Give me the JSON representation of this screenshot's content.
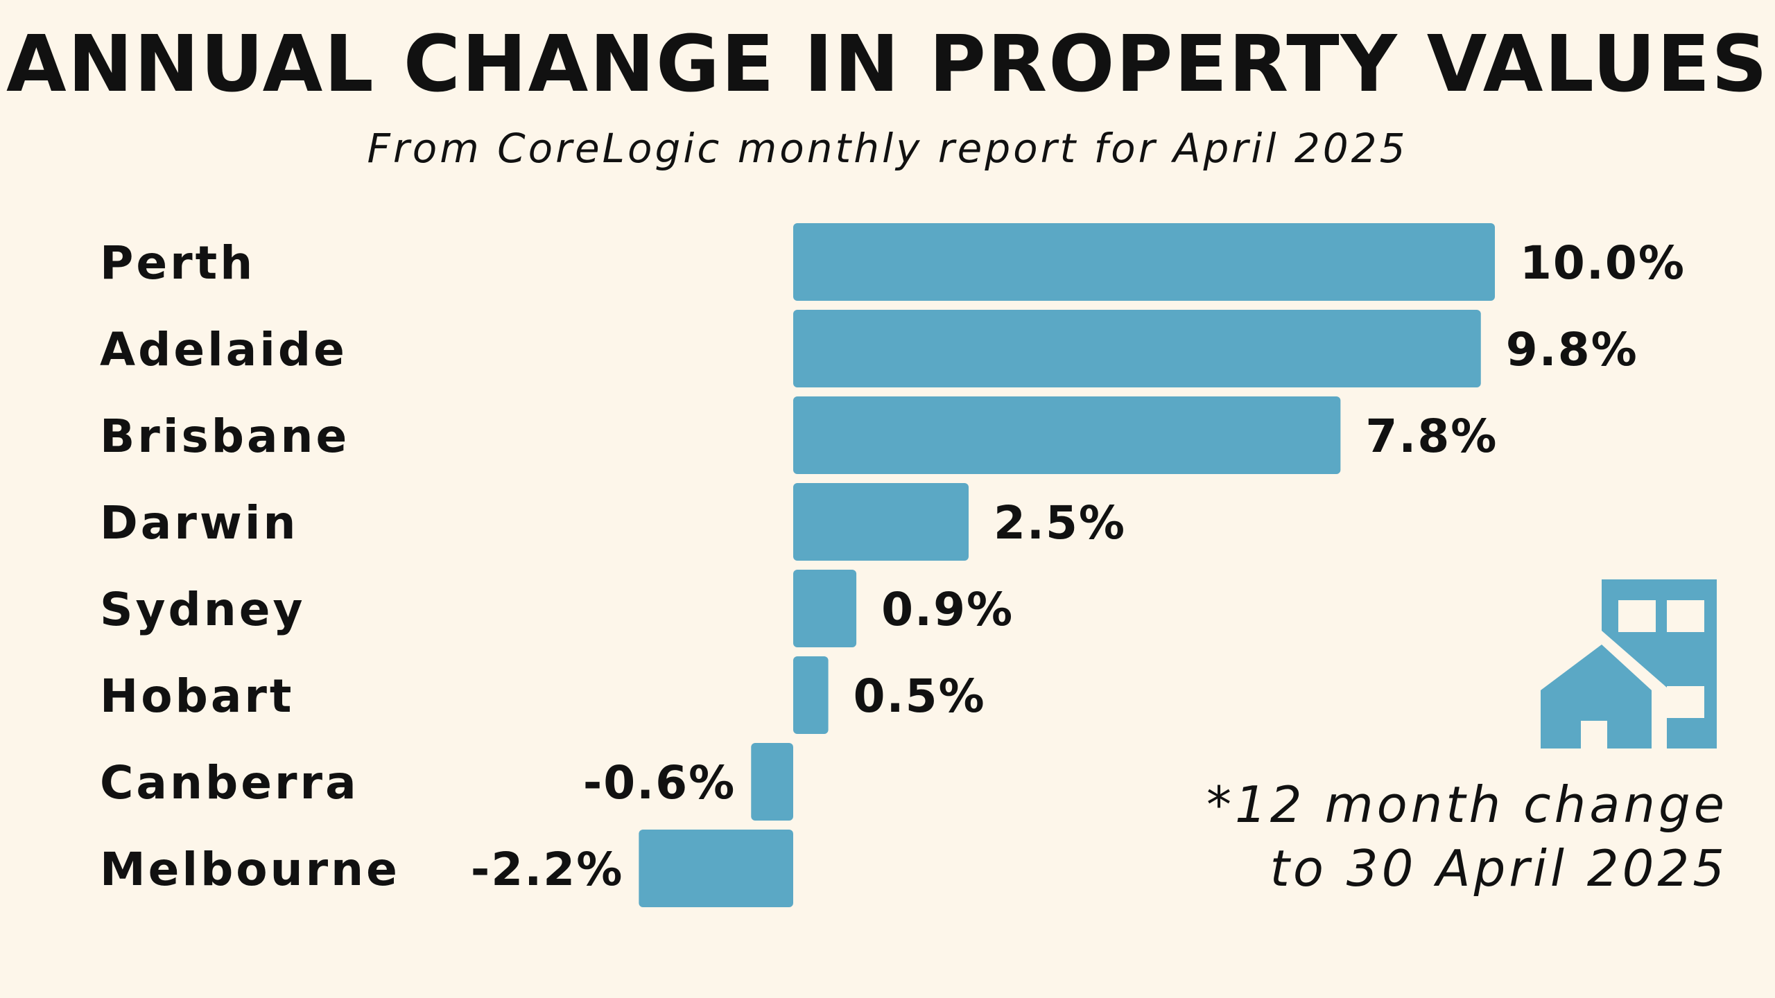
{
  "title": "ANNUAL CHANGE IN PROPERTY VALUES",
  "subtitle": "From CoreLogic monthly report for April 2025",
  "footnote": {
    "line1": "*12 month change",
    "line2": "to 30 April 2025"
  },
  "icon": "house-and-building-icon",
  "colors": {
    "background": "#fdf6ea",
    "bar": "#5ba8c5",
    "text": "#111111"
  },
  "chart_data": {
    "type": "bar",
    "orientation": "horizontal",
    "title": "ANNUAL CHANGE IN PROPERTY VALUES",
    "subtitle": "From CoreLogic monthly report for April 2025",
    "categories": [
      "Perth",
      "Adelaide",
      "Brisbane",
      "Darwin",
      "Sydney",
      "Hobart",
      "Canberra",
      "Melbourne"
    ],
    "values": [
      10.0,
      9.8,
      7.8,
      2.5,
      0.9,
      0.5,
      -0.6,
      -2.2
    ],
    "value_labels": [
      "10.0%",
      "9.8%",
      "7.8%",
      "2.5%",
      "0.9%",
      "0.5%",
      "-0.6%",
      "-2.2%"
    ],
    "unit": "%",
    "xlabel": "",
    "ylabel": "",
    "grid": false,
    "legend": "none"
  }
}
